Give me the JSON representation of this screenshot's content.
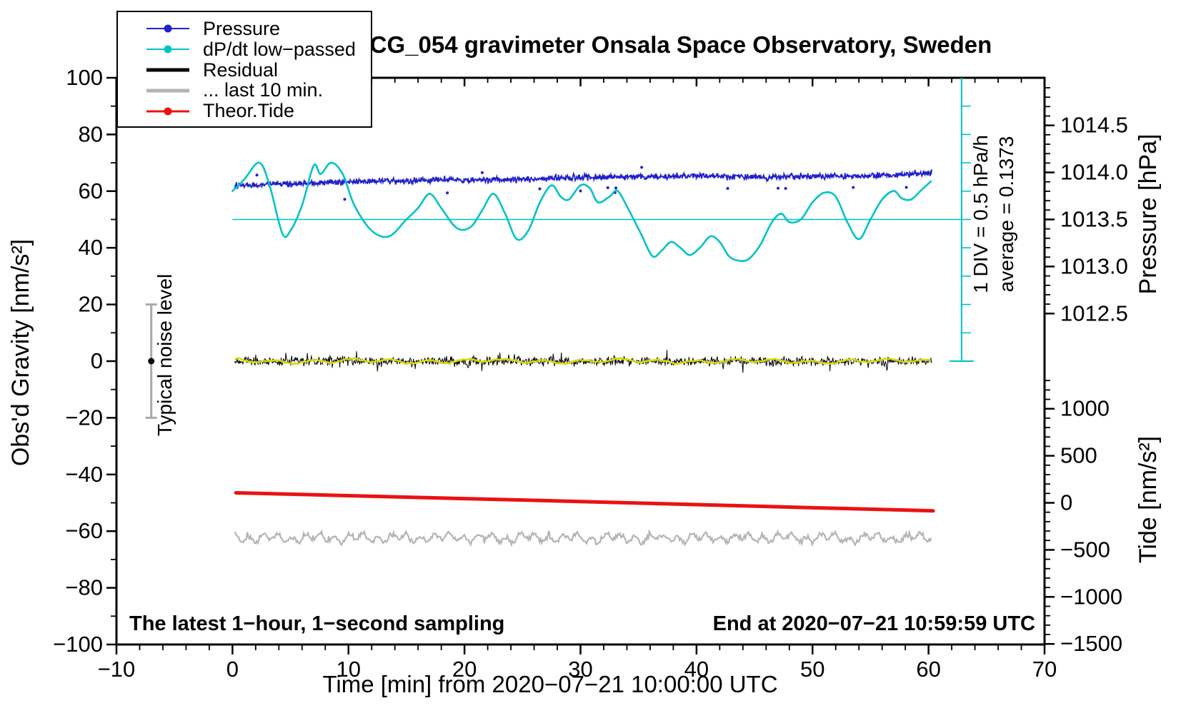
{
  "title": "SCG_054 gravimeter Onsala Space Observatory, Sweden",
  "footer_left": "The latest 1−hour, 1−second sampling",
  "footer_right": "End at 2020−07−21 10:59:59 UTC",
  "legend": {
    "items": [
      {
        "label": "Pressure",
        "color": "#2121cd",
        "marker": "dot",
        "thickness": 2
      },
      {
        "label": "dP/dt low−passed",
        "color": "#00c3c6",
        "marker": "dot",
        "thickness": 2
      },
      {
        "label": "Residual",
        "color": "#000000",
        "marker": "none",
        "thickness": 5
      },
      {
        "label": "... last 10 min.",
        "color": "#b4b4b4",
        "marker": "none",
        "thickness": 5
      },
      {
        "label": "Theor.Tide",
        "color": "#ea1212",
        "marker": "dot",
        "thickness": 3
      }
    ]
  },
  "colors": {
    "pressure": "#2121cd",
    "dpdt": "#00c3c6",
    "residual": "#000000",
    "residual_lowpass": "#d8d800",
    "last10": "#b4b4b4",
    "tide": "#ea1212",
    "noise_bar": "#a9a9a9",
    "frame": "#000000"
  },
  "chart_data": {
    "type": "line",
    "title": "SCG_054 gravimeter Onsala Space Observatory, Sweden",
    "x_axis": {
      "label": "Time [min] from 2020−07−21 10:00:00 UTC",
      "min": -10,
      "max": 70,
      "major_tick_values": [
        -10,
        0,
        10,
        20,
        30,
        40,
        50,
        60,
        70
      ],
      "major_tick_labels": [
        "−10",
        "0",
        "10",
        "20",
        "30",
        "40",
        "50",
        "60",
        "70"
      ],
      "minor_step": 2,
      "grid": false
    },
    "y_left": {
      "label": "Obs'd Gravity [nm/s²]",
      "min": -100,
      "max": 100,
      "major_tick_values": [
        100,
        80,
        60,
        40,
        20,
        0,
        -20,
        -40,
        -60,
        -80,
        -100
      ],
      "major_tick_labels": [
        "100",
        "80",
        "60",
        "40",
        "20",
        "0",
        "−20",
        "−40",
        "−60",
        "−80",
        "−100"
      ],
      "minor_step": 10
    },
    "y_right_pressure": {
      "label": "Pressure [hPa]",
      "major_tick_values": [
        1014.5,
        1014.0,
        1013.5,
        1013.0,
        1012.5
      ],
      "major_tick_labels": [
        "1014.5",
        "1014.0",
        "1013.5",
        "1013.0",
        "1012.5"
      ],
      "minor_step": 0.1,
      "hpa_at_gravity_50": 1013.5,
      "gravity_units_per_hpa": 33.2
    },
    "y_right_tide": {
      "label": "Tide [nm/s²]",
      "major_tick_values": [
        1000,
        500,
        0,
        -500,
        -1000,
        -1500
      ],
      "major_tick_labels": [
        "1000",
        "500",
        "0",
        "−500",
        "−1000",
        "−1500"
      ],
      "minor_step": 100,
      "gravity_at_tide_0": -50,
      "gravity_units_per_500": 16.6
    },
    "annotations": {
      "noise_bar": {
        "label": "Typical noise level",
        "x_min": -7,
        "center_nms2": 0,
        "half_range_nms2": 20
      },
      "div_scale": {
        "label_line1": "1 DIV = 0.5 hPa/h",
        "label_line2": "average = 0.1373",
        "x_min": 62.85,
        "gravity_top": 100,
        "gravity_bottom": 0,
        "tick_step_gravity": 10
      },
      "average_line": {
        "gravity": 50,
        "x_start_min": 0,
        "x_end_min": 62.85,
        "value_hpa_per_h": 0.1373
      }
    },
    "series": [
      {
        "name": "pressure",
        "unit": "hPa",
        "style": "noisy-dots",
        "keypoints": [
          [
            0,
            1013.86
          ],
          [
            3,
            1013.87
          ],
          [
            6,
            1013.88
          ],
          [
            10,
            1013.9
          ],
          [
            14,
            1013.91
          ],
          [
            18,
            1013.92
          ],
          [
            22,
            1013.92
          ],
          [
            26,
            1013.93
          ],
          [
            30,
            1013.95
          ],
          [
            34,
            1013.95
          ],
          [
            38,
            1013.96
          ],
          [
            42,
            1013.96
          ],
          [
            46,
            1013.95
          ],
          [
            50,
            1013.96
          ],
          [
            54,
            1013.96
          ],
          [
            58,
            1013.98
          ],
          [
            60.3,
            1013.995
          ]
        ],
        "noise_hpa": 0.03,
        "t_start": 0.2,
        "t_end": 60.3
      },
      {
        "name": "dpdt_lowpassed",
        "unit": "hPa/h",
        "style": "smooth-line",
        "average": 0.1373,
        "keypoints": [
          [
            0,
            0.64
          ],
          [
            1,
            0.84
          ],
          [
            2.3,
            1.14
          ],
          [
            3.2,
            0.74
          ],
          [
            4.3,
            -0.11
          ],
          [
            5,
            -0.06
          ],
          [
            6,
            0.39
          ],
          [
            7,
            1.09
          ],
          [
            7.6,
            0.94
          ],
          [
            8.5,
            1.14
          ],
          [
            9.5,
            0.94
          ],
          [
            10.5,
            0.39
          ],
          [
            12,
            -0.06
          ],
          [
            13.5,
            -0.16
          ],
          [
            15,
            0.14
          ],
          [
            16,
            0.34
          ],
          [
            17,
            0.59
          ],
          [
            18,
            0.34
          ],
          [
            19.3,
            -0.01
          ],
          [
            20.5,
            0.0
          ],
          [
            21.5,
            0.29
          ],
          [
            22.5,
            0.59
          ],
          [
            23.5,
            0.24
          ],
          [
            24.5,
            -0.21
          ],
          [
            25.5,
            -0.06
          ],
          [
            26.5,
            0.44
          ],
          [
            27.5,
            0.74
          ],
          [
            28.3,
            0.54
          ],
          [
            29,
            0.49
          ],
          [
            30,
            0.74
          ],
          [
            30.8,
            0.69
          ],
          [
            31.5,
            0.44
          ],
          [
            32.5,
            0.54
          ],
          [
            33.2,
            0.64
          ],
          [
            34.2,
            0.29
          ],
          [
            35.2,
            -0.11
          ],
          [
            36.2,
            -0.51
          ],
          [
            37,
            -0.41
          ],
          [
            37.8,
            -0.26
          ],
          [
            38.6,
            -0.36
          ],
          [
            39.4,
            -0.49
          ],
          [
            40.3,
            -0.36
          ],
          [
            41.2,
            -0.16
          ],
          [
            42,
            -0.26
          ],
          [
            42.8,
            -0.51
          ],
          [
            43.6,
            -0.59
          ],
          [
            44.5,
            -0.56
          ],
          [
            45.5,
            -0.31
          ],
          [
            46.5,
            0.09
          ],
          [
            47.3,
            0.24
          ],
          [
            48,
            0.09
          ],
          [
            49,
            0.14
          ],
          [
            50,
            0.44
          ],
          [
            51,
            0.61
          ],
          [
            52,
            0.54
          ],
          [
            53,
            0.09
          ],
          [
            54,
            -0.21
          ],
          [
            55,
            0.14
          ],
          [
            56,
            0.49
          ],
          [
            57,
            0.64
          ],
          [
            57.7,
            0.51
          ],
          [
            58.5,
            0.49
          ],
          [
            59.3,
            0.64
          ],
          [
            60.2,
            0.81
          ]
        ]
      },
      {
        "name": "residual",
        "unit": "nm/s²",
        "style": "noisy-line",
        "mean": 0,
        "peak": 4.5,
        "t_start": 0.2,
        "t_end": 60.3
      },
      {
        "name": "residual_lowpass",
        "unit": "nm/s²",
        "style": "smooth-line",
        "mean": 0,
        "peak": 0.9,
        "t_start": 0.2,
        "t_end": 60.3
      },
      {
        "name": "residual_last10min",
        "unit": "nm/s²",
        "style": "noisy-line",
        "display_offset": -62.4,
        "peak": 2.5,
        "t_start": 0.2,
        "t_end": 60.3
      },
      {
        "name": "theor_tide",
        "unit": "nm/s² (tide axis)",
        "style": "thick-line",
        "keypoints": [
          [
            0.3,
            106
          ],
          [
            10,
            76
          ],
          [
            20,
            45
          ],
          [
            30,
            14
          ],
          [
            40,
            -19
          ],
          [
            50,
            -52
          ],
          [
            60.4,
            -85
          ]
        ]
      }
    ]
  }
}
